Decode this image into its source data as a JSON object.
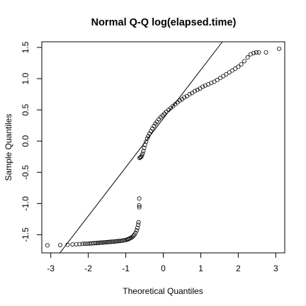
{
  "chart_data": {
    "type": "scatter",
    "title": "Normal Q-Q log(elapsed.time)",
    "xlabel": "Theoretical Quantiles",
    "ylabel": "Sample Quantiles",
    "xlim": [
      -3.24,
      3.24
    ],
    "ylim": [
      -1.79,
      1.59
    ],
    "x_ticks": [
      -3,
      -2,
      -1,
      0,
      1,
      2,
      3
    ],
    "x_tick_labels": [
      "-3",
      "-2",
      "-1",
      "0",
      "1",
      "2",
      "3"
    ],
    "y_ticks": [
      -1.5,
      -1.0,
      -0.5,
      0.0,
      0.5,
      1.0,
      1.5
    ],
    "y_tick_labels": [
      "-1.5",
      "-1.0",
      "-0.5",
      "0.0",
      "0.5",
      "1.0",
      "1.5"
    ],
    "grid": false,
    "reference_line": {
      "intercept": 0.36,
      "slope": 0.78
    },
    "points": [
      [
        -3.09,
        -1.67
      ],
      [
        -2.75,
        -1.665
      ],
      [
        -2.55,
        -1.66
      ],
      [
        -2.42,
        -1.655
      ],
      [
        -2.32,
        -1.652
      ],
      [
        -2.23,
        -1.649
      ],
      [
        -2.15,
        -1.646
      ],
      [
        -2.09,
        -1.644
      ],
      [
        -2.03,
        -1.642
      ],
      [
        -1.97,
        -1.64
      ],
      [
        -1.92,
        -1.638
      ],
      [
        -1.87,
        -1.636
      ],
      [
        -1.82,
        -1.634
      ],
      [
        -1.78,
        -1.632
      ],
      [
        -1.74,
        -1.63
      ],
      [
        -1.7,
        -1.628
      ],
      [
        -1.66,
        -1.626
      ],
      [
        -1.62,
        -1.624
      ],
      [
        -1.58,
        -1.622
      ],
      [
        -1.54,
        -1.62
      ],
      [
        -1.5,
        -1.618
      ],
      [
        -1.46,
        -1.616
      ],
      [
        -1.42,
        -1.614
      ],
      [
        -1.38,
        -1.612
      ],
      [
        -1.34,
        -1.61
      ],
      [
        -1.3,
        -1.608
      ],
      [
        -1.26,
        -1.606
      ],
      [
        -1.22,
        -1.603
      ],
      [
        -1.18,
        -1.6
      ],
      [
        -1.14,
        -1.597
      ],
      [
        -1.1,
        -1.594
      ],
      [
        -1.06,
        -1.59
      ],
      [
        -1.02,
        -1.586
      ],
      [
        -0.98,
        -1.58
      ],
      [
        -0.95,
        -1.574
      ],
      [
        -0.92,
        -1.567
      ],
      [
        -0.89,
        -1.558
      ],
      [
        -0.86,
        -1.548
      ],
      [
        -0.83,
        -1.536
      ],
      [
        -0.8,
        -1.52
      ],
      [
        -0.77,
        -1.5
      ],
      [
        -0.74,
        -1.47
      ],
      [
        -0.71,
        -1.43
      ],
      [
        -0.69,
        -1.39
      ],
      [
        -0.67,
        -1.34
      ],
      [
        -0.66,
        -1.3
      ],
      [
        -0.64,
        -1.06
      ],
      [
        -0.64,
        -1.03
      ],
      [
        -0.64,
        -0.92
      ],
      [
        -0.63,
        -0.27
      ],
      [
        -0.61,
        -0.26
      ],
      [
        -0.59,
        -0.25
      ],
      [
        -0.57,
        -0.23
      ],
      [
        -0.55,
        -0.2
      ],
      [
        -0.53,
        -0.16
      ],
      [
        -0.51,
        -0.11
      ],
      [
        -0.49,
        -0.06
      ],
      [
        -0.46,
        -0.01
      ],
      [
        -0.43,
        0.04
      ],
      [
        -0.4,
        0.08
      ],
      [
        -0.37,
        0.12
      ],
      [
        -0.33,
        0.16
      ],
      [
        -0.29,
        0.2
      ],
      [
        -0.25,
        0.24
      ],
      [
        -0.21,
        0.28
      ],
      [
        -0.17,
        0.31
      ],
      [
        -0.12,
        0.35
      ],
      [
        -0.07,
        0.38
      ],
      [
        -0.02,
        0.41
      ],
      [
        0.03,
        0.44
      ],
      [
        0.08,
        0.47
      ],
      [
        0.14,
        0.5
      ],
      [
        0.2,
        0.53
      ],
      [
        0.26,
        0.56
      ],
      [
        0.32,
        0.59
      ],
      [
        0.38,
        0.62
      ],
      [
        0.44,
        0.65
      ],
      [
        0.5,
        0.67
      ],
      [
        0.56,
        0.7
      ],
      [
        0.63,
        0.72
      ],
      [
        0.7,
        0.75
      ],
      [
        0.77,
        0.77
      ],
      [
        0.84,
        0.8
      ],
      [
        0.91,
        0.82
      ],
      [
        0.98,
        0.84
      ],
      [
        1.05,
        0.87
      ],
      [
        1.12,
        0.89
      ],
      [
        1.2,
        0.91
      ],
      [
        1.28,
        0.93
      ],
      [
        1.36,
        0.95
      ],
      [
        1.44,
        0.98
      ],
      [
        1.52,
        1.01
      ],
      [
        1.6,
        1.04
      ],
      [
        1.68,
        1.07
      ],
      [
        1.76,
        1.1
      ],
      [
        1.84,
        1.13
      ],
      [
        1.92,
        1.16
      ],
      [
        2.0,
        1.19
      ],
      [
        2.08,
        1.23
      ],
      [
        2.16,
        1.28
      ],
      [
        2.25,
        1.34
      ],
      [
        2.33,
        1.39
      ],
      [
        2.41,
        1.41
      ],
      [
        2.48,
        1.42
      ],
      [
        2.55,
        1.42
      ],
      [
        2.74,
        1.42
      ],
      [
        3.09,
        1.48
      ]
    ]
  }
}
